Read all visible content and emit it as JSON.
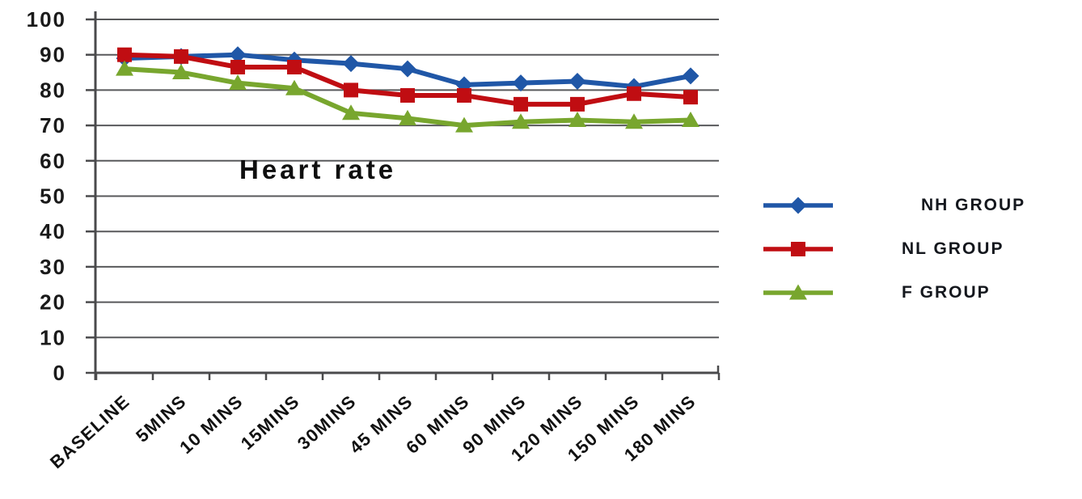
{
  "background": "#ffffff",
  "chart_data": {
    "type": "line",
    "title": "Heart rate",
    "categories": [
      "BASELINE",
      "5MINS",
      "10 MINS",
      "15MINS",
      "30MINS",
      "45 MINS",
      "60 MINS",
      "90 MINS",
      "120 MINS",
      "150 MINS",
      "180 MINS"
    ],
    "y_ticks": [
      100,
      90,
      80,
      70,
      60,
      50,
      40,
      30,
      20,
      10,
      0
    ],
    "ylim": [
      0,
      100
    ],
    "xlabel": "",
    "ylabel": "",
    "grid": "horizontal",
    "grid_color": "#58595b",
    "axis_color": "#4a4a4c",
    "legend_position": "right",
    "series": [
      {
        "name": "NH GROUP",
        "marker": "diamond",
        "color": "#2057a7",
        "values": [
          89,
          89.5,
          90,
          88.5,
          87.5,
          86,
          81.5,
          82,
          82.5,
          81,
          84
        ]
      },
      {
        "name": "NL GROUP",
        "marker": "square",
        "color": "#c00d12",
        "values": [
          90,
          89.5,
          86.5,
          86.5,
          80,
          78.5,
          78.5,
          76,
          76,
          79,
          78
        ]
      },
      {
        "name": "F GROUP",
        "marker": "triangle",
        "color": "#78a62e",
        "values": [
          86,
          85,
          82,
          80.5,
          73.5,
          72,
          70,
          71,
          71.5,
          71,
          71.5
        ]
      }
    ]
  }
}
